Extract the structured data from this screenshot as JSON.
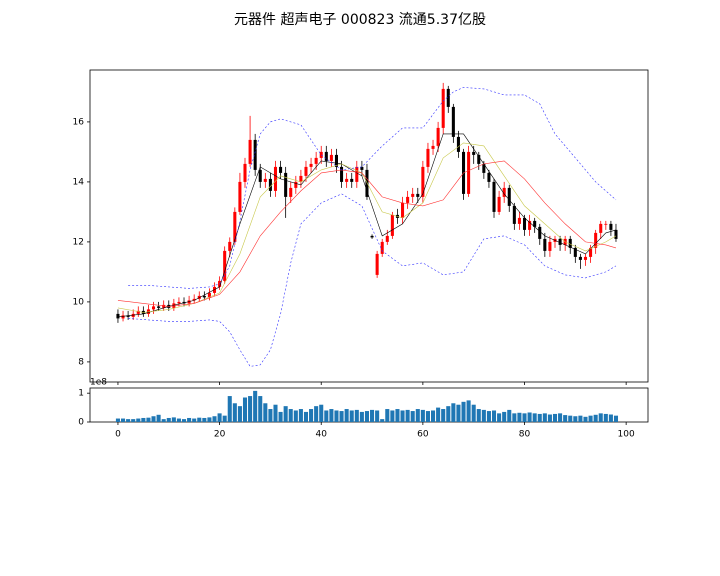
{
  "chart_data": {
    "type": "candlestick",
    "title": "元器件 超声电子 000823 流通5.37亿股",
    "up_color": "#ff0000",
    "down_color": "#000000",
    "xlim": [
      -5.5,
      104.3
    ],
    "xticks": [
      0,
      20,
      40,
      60,
      80,
      100
    ],
    "ylim": [
      7.33,
      17.73
    ],
    "yticks": [
      8,
      10,
      12,
      14,
      16
    ],
    "x": [
      0,
      1,
      2,
      3,
      4,
      5,
      6,
      7,
      8,
      9,
      10,
      11,
      12,
      13,
      14,
      15,
      16,
      17,
      18,
      19,
      20,
      21,
      22,
      23,
      24,
      25,
      26,
      27,
      28,
      29,
      30,
      31,
      32,
      33,
      34,
      35,
      36,
      37,
      38,
      39,
      40,
      41,
      42,
      43,
      44,
      45,
      46,
      47,
      48,
      49,
      50,
      51,
      52,
      53,
      54,
      55,
      56,
      57,
      58,
      59,
      60,
      61,
      62,
      63,
      64,
      65,
      66,
      67,
      68,
      69,
      70,
      71,
      72,
      73,
      74,
      75,
      76,
      77,
      78,
      79,
      80,
      81,
      82,
      83,
      84,
      85,
      86,
      87,
      88,
      89,
      90,
      91,
      92,
      93,
      94,
      95,
      96,
      97,
      98
    ],
    "open": [
      9.6,
      9.45,
      9.55,
      9.5,
      9.6,
      9.7,
      9.6,
      9.75,
      9.85,
      9.8,
      9.9,
      9.8,
      9.95,
      10.0,
      9.95,
      10.05,
      10.1,
      10.2,
      10.15,
      10.3,
      10.5,
      10.7,
      11.7,
      12.0,
      13.0,
      14.0,
      14.6,
      15.4,
      14.4,
      14.0,
      14.1,
      13.7,
      14.5,
      14.3,
      13.5,
      13.8,
      14.0,
      14.2,
      14.5,
      14.6,
      14.8,
      15.0,
      14.7,
      14.9,
      14.5,
      14.0,
      14.1,
      14.0,
      14.5,
      14.4,
      12.2,
      10.9,
      11.6,
      12.0,
      12.2,
      12.9,
      12.8,
      13.3,
      13.5,
      13.6,
      13.5,
      14.5,
      15.1,
      15.2,
      15.8,
      17.1,
      16.5,
      15.5,
      15.0,
      13.6,
      15.0,
      14.9,
      14.6,
      14.3,
      14.0,
      13.0,
      13.5,
      13.8,
      13.2,
      12.6,
      12.8,
      12.4,
      12.7,
      12.5,
      12.1,
      11.7,
      12.0,
      12.1,
      11.9,
      12.1,
      11.8,
      11.5,
      11.4,
      11.5,
      11.8,
      12.3,
      12.6,
      12.6,
      12.4
    ],
    "high": [
      9.75,
      9.7,
      9.7,
      9.75,
      9.85,
      9.85,
      9.9,
      10.0,
      10.0,
      10.05,
      10.05,
      10.1,
      10.15,
      10.15,
      10.2,
      10.25,
      10.35,
      10.35,
      10.45,
      10.65,
      10.85,
      11.85,
      12.15,
      13.15,
      14.3,
      14.8,
      16.2,
      15.6,
      14.6,
      14.3,
      14.3,
      14.7,
      14.7,
      14.5,
      14.0,
      14.2,
      14.4,
      14.7,
      14.8,
      15.0,
      15.2,
      15.2,
      15.1,
      15.1,
      14.7,
      14.3,
      14.3,
      14.7,
      14.7,
      14.6,
      12.25,
      11.7,
      12.1,
      12.4,
      13.0,
      13.1,
      13.5,
      13.7,
      13.8,
      13.8,
      14.7,
      15.3,
      15.4,
      16.0,
      17.3,
      17.2,
      16.6,
      15.7,
      15.1,
      15.2,
      15.2,
      15.0,
      14.7,
      14.4,
      14.1,
      13.7,
      14.0,
      13.9,
      13.3,
      13.0,
      12.9,
      12.9,
      12.8,
      12.6,
      12.3,
      12.2,
      12.2,
      12.2,
      12.2,
      12.2,
      11.9,
      11.6,
      11.6,
      11.9,
      12.4,
      12.7,
      12.7,
      12.7,
      12.6
    ],
    "low": [
      9.3,
      9.35,
      9.4,
      9.4,
      9.5,
      9.5,
      9.5,
      9.6,
      9.7,
      9.7,
      9.7,
      9.7,
      9.85,
      9.85,
      9.85,
      9.95,
      10.0,
      10.05,
      10.05,
      10.2,
      10.4,
      10.6,
      11.5,
      11.9,
      12.9,
      13.8,
      14.5,
      14.2,
      13.8,
      13.8,
      13.5,
      13.5,
      14.1,
      12.8,
      13.3,
      13.6,
      13.8,
      14.0,
      14.3,
      14.4,
      14.6,
      14.5,
      14.5,
      14.3,
      13.8,
      13.8,
      13.8,
      13.8,
      14.2,
      13.4,
      12.1,
      10.8,
      11.5,
      11.9,
      12.1,
      12.6,
      12.6,
      13.1,
      13.3,
      13.3,
      13.3,
      14.3,
      14.9,
      15.0,
      15.6,
      16.3,
      15.3,
      14.8,
      13.4,
      13.5,
      14.6,
      14.4,
      14.1,
      13.8,
      12.8,
      12.9,
      13.3,
      13.0,
      12.4,
      12.4,
      12.2,
      12.2,
      12.3,
      11.9,
      11.5,
      11.5,
      11.8,
      11.7,
      11.7,
      11.6,
      11.3,
      11.1,
      11.2,
      11.3,
      11.6,
      12.1,
      12.4,
      12.2,
      12.0
    ],
    "close": [
      9.45,
      9.55,
      9.5,
      9.6,
      9.7,
      9.6,
      9.75,
      9.85,
      9.8,
      9.9,
      9.8,
      9.95,
      10.0,
      9.95,
      10.05,
      10.1,
      10.2,
      10.15,
      10.3,
      10.5,
      10.7,
      11.7,
      12.0,
      13.0,
      14.0,
      14.6,
      15.4,
      14.4,
      14.0,
      14.1,
      13.7,
      14.5,
      14.3,
      13.5,
      13.8,
      14.0,
      14.2,
      14.5,
      14.6,
      14.8,
      15.0,
      14.7,
      14.9,
      14.5,
      14.0,
      14.1,
      14.0,
      14.5,
      14.4,
      13.5,
      12.15,
      11.6,
      12.0,
      12.2,
      12.9,
      12.8,
      13.3,
      13.5,
      13.6,
      13.5,
      14.5,
      15.1,
      15.2,
      15.8,
      17.1,
      16.5,
      15.5,
      15.0,
      13.6,
      15.0,
      14.9,
      14.6,
      14.3,
      14.0,
      13.0,
      13.5,
      13.8,
      13.2,
      12.6,
      12.8,
      12.4,
      12.7,
      12.5,
      12.1,
      11.7,
      12.0,
      12.1,
      11.9,
      12.1,
      11.8,
      11.5,
      11.4,
      11.5,
      11.8,
      12.3,
      12.6,
      12.6,
      12.4,
      12.1
    ],
    "lines": [
      {
        "color": "#000000",
        "dash": "none",
        "x": [
          0,
          5,
          10,
          15,
          20,
          24,
          28,
          32,
          36,
          40,
          44,
          48,
          52,
          56,
          60,
          64,
          68,
          72,
          76,
          80,
          84,
          88,
          92,
          96,
          98
        ],
        "values": [
          9.5,
          9.6,
          9.85,
          10.05,
          10.5,
          12.6,
          14.5,
          14.1,
          13.9,
          14.7,
          14.6,
          14.2,
          12.2,
          12.6,
          13.6,
          15.6,
          15.6,
          14.6,
          13.6,
          12.8,
          12.2,
          11.9,
          11.6,
          12.3,
          12.4
        ]
      },
      {
        "color": "#c8c84a",
        "dash": "none",
        "x": [
          0,
          5,
          10,
          15,
          20,
          24,
          28,
          32,
          36,
          40,
          44,
          48,
          52,
          56,
          60,
          64,
          68,
          72,
          76,
          80,
          84,
          88,
          92,
          96,
          98
        ],
        "values": [
          9.8,
          9.65,
          9.75,
          9.95,
          10.3,
          11.6,
          13.5,
          14.2,
          14.0,
          14.4,
          14.6,
          14.3,
          13.0,
          12.8,
          13.3,
          14.8,
          15.3,
          15.2,
          14.2,
          13.2,
          12.6,
          12.0,
          11.7,
          12.0,
          12.2
        ]
      },
      {
        "color": "#ff3030",
        "dash": "none",
        "x": [
          0,
          5,
          10,
          15,
          20,
          24,
          28,
          32,
          36,
          40,
          44,
          48,
          52,
          56,
          60,
          64,
          68,
          72,
          76,
          80,
          84,
          88,
          92,
          96,
          98
        ],
        "values": [
          10.05,
          9.95,
          9.85,
          9.95,
          10.25,
          11.0,
          12.2,
          13.0,
          13.7,
          14.3,
          14.4,
          14.3,
          13.5,
          13.3,
          13.2,
          13.4,
          14.3,
          14.6,
          14.7,
          14.1,
          13.3,
          12.6,
          12.0,
          11.9,
          11.8
        ]
      },
      {
        "color": "#3030ff",
        "dash": "2,2",
        "x": [
          2,
          6,
          10,
          14,
          18,
          20,
          22,
          24,
          26,
          28,
          30,
          32,
          36,
          40,
          44,
          48,
          52,
          56,
          60,
          64,
          66,
          68,
          72,
          76,
          80,
          83,
          86,
          90,
          94,
          98
        ],
        "values": [
          10.55,
          10.55,
          10.5,
          10.45,
          10.5,
          10.6,
          11.2,
          12.7,
          14.4,
          15.6,
          16.0,
          16.1,
          15.9,
          14.9,
          14.4,
          14.5,
          15.2,
          15.8,
          15.8,
          16.7,
          17.0,
          17.15,
          17.1,
          16.9,
          16.9,
          16.6,
          15.6,
          14.8,
          14.0,
          13.4
        ]
      },
      {
        "color": "#3030ff",
        "dash": "2,2",
        "x": [
          2,
          6,
          10,
          14,
          18,
          20,
          22,
          24,
          26,
          28,
          30,
          32,
          34,
          36,
          40,
          44,
          48,
          52,
          56,
          60,
          64,
          68,
          72,
          76,
          80,
          84,
          88,
          92,
          96,
          98
        ],
        "values": [
          9.45,
          9.4,
          9.35,
          9.35,
          9.4,
          9.35,
          9.0,
          8.4,
          7.85,
          7.9,
          8.4,
          9.6,
          11.3,
          12.6,
          13.3,
          13.6,
          13.2,
          11.7,
          11.2,
          11.3,
          10.9,
          11.0,
          12.1,
          12.2,
          11.9,
          11.2,
          10.9,
          10.8,
          11.0,
          11.2
        ]
      }
    ],
    "volume": {
      "color": "#1f77b4",
      "ylim": [
        0,
        1.18
      ],
      "yticks": [
        0,
        1
      ],
      "offset_label": "1e8",
      "values": [
        0.12,
        0.12,
        0.1,
        0.1,
        0.12,
        0.14,
        0.15,
        0.2,
        0.25,
        0.1,
        0.14,
        0.16,
        0.12,
        0.1,
        0.14,
        0.12,
        0.15,
        0.14,
        0.16,
        0.2,
        0.3,
        0.22,
        0.9,
        0.65,
        0.55,
        0.85,
        0.9,
        1.08,
        0.9,
        0.65,
        0.45,
        0.6,
        0.35,
        0.55,
        0.45,
        0.4,
        0.45,
        0.35,
        0.45,
        0.55,
        0.6,
        0.4,
        0.45,
        0.4,
        0.38,
        0.45,
        0.4,
        0.42,
        0.35,
        0.38,
        0.42,
        0.4,
        0.1,
        0.45,
        0.4,
        0.45,
        0.4,
        0.42,
        0.38,
        0.45,
        0.42,
        0.38,
        0.4,
        0.5,
        0.45,
        0.55,
        0.65,
        0.6,
        0.7,
        0.75,
        0.6,
        0.45,
        0.42,
        0.38,
        0.4,
        0.3,
        0.35,
        0.42,
        0.3,
        0.32,
        0.3,
        0.33,
        0.3,
        0.28,
        0.3,
        0.26,
        0.28,
        0.3,
        0.24,
        0.22,
        0.2,
        0.22,
        0.18,
        0.22,
        0.25,
        0.3,
        0.28,
        0.26,
        0.22
      ]
    }
  }
}
